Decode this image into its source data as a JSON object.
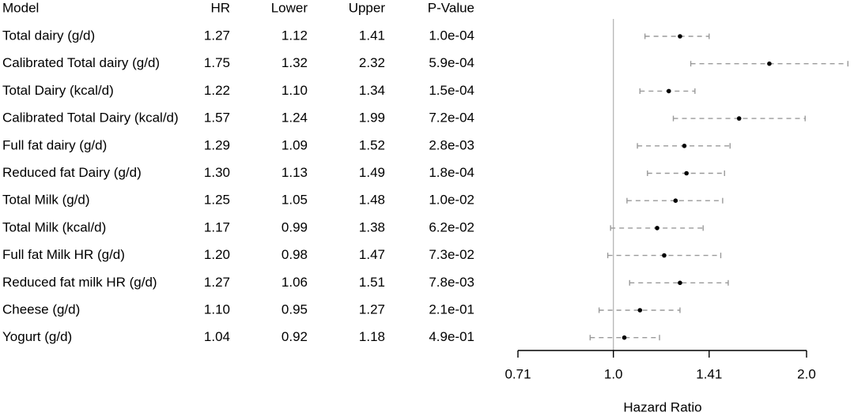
{
  "chart_data": {
    "type": "forest",
    "title": "",
    "xlabel": "Hazard Ratio",
    "ylabel": "",
    "x_scale": "log",
    "xlim": [
      0.71,
      2.0
    ],
    "x_ticks": [
      0.71,
      1.0,
      1.41,
      2.0
    ],
    "x_tick_labels": [
      "0.71",
      "1.0",
      "1.41",
      "2.0"
    ],
    "reference_line": 1.0,
    "grid": false,
    "legend": "none",
    "columns": [
      "Model",
      "HR",
      "Lower",
      "Upper",
      "P-Value"
    ],
    "colors": {
      "point": "#000000",
      "ci": "#9a9a9a",
      "reference": "#b0b0b0",
      "axis": "#000000"
    },
    "rows": [
      {
        "model": "Total dairy (g/d)",
        "hr": "1.27",
        "lower": "1.12",
        "upper": "1.41",
        "p": "1.0e-04"
      },
      {
        "model": "Calibrated Total dairy (g/d)",
        "hr": "1.75",
        "lower": "1.32",
        "upper": "2.32",
        "p": "5.9e-04"
      },
      {
        "model": "Total Dairy (kcal/d)",
        "hr": "1.22",
        "lower": "1.10",
        "upper": "1.34",
        "p": "1.5e-04"
      },
      {
        "model": "Calibrated Total Dairy (kcal/d)",
        "hr": "1.57",
        "lower": "1.24",
        "upper": "1.99",
        "p": "7.2e-04"
      },
      {
        "model": "Full fat dairy (g/d)",
        "hr": "1.29",
        "lower": "1.09",
        "upper": "1.52",
        "p": "2.8e-03"
      },
      {
        "model": "Reduced fat Dairy (g/d)",
        "hr": "1.30",
        "lower": "1.13",
        "upper": "1.49",
        "p": "1.8e-04"
      },
      {
        "model": "Total Milk (g/d)",
        "hr": "1.25",
        "lower": "1.05",
        "upper": "1.48",
        "p": "1.0e-02"
      },
      {
        "model": "Total Milk (kcal/d)",
        "hr": "1.17",
        "lower": "0.99",
        "upper": "1.38",
        "p": "6.2e-02"
      },
      {
        "model": "Full fat Milk HR    (g/d)",
        "hr": "1.20",
        "lower": "0.98",
        "upper": "1.47",
        "p": "7.3e-02"
      },
      {
        "model": "Reduced fat milk HR (g/d)",
        "hr": "1.27",
        "lower": "1.06",
        "upper": "1.51",
        "p": "7.8e-03"
      },
      {
        "model": "Cheese (g/d)",
        "hr": "1.10",
        "lower": "0.95",
        "upper": "1.27",
        "p": "2.1e-01"
      },
      {
        "model": "Yogurt (g/d)",
        "hr": "1.04",
        "lower": "0.92",
        "upper": "1.18",
        "p": "4.9e-01"
      }
    ]
  }
}
